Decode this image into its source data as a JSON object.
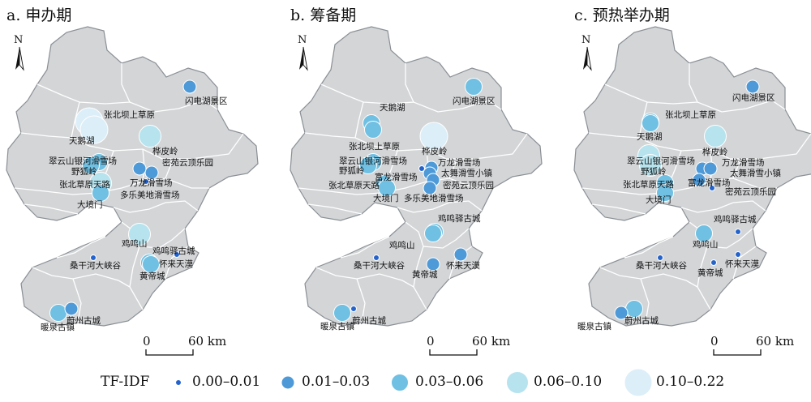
{
  "colors": {
    "land": "#d3d5d7",
    "border": "#ffffff",
    "outline": "#8a8f94",
    "c1": "#2463cc",
    "c2": "#4e9ad8",
    "c3": "#6fc0e3",
    "c4": "#b6e3ee",
    "c5": "#dceef8"
  },
  "legend": {
    "title": "TF-IDF",
    "items": [
      {
        "label": "0.00–0.01",
        "cls": 1
      },
      {
        "label": "0.01–0.03",
        "cls": 2
      },
      {
        "label": "0.03–0.06",
        "cls": 3
      },
      {
        "label": "0.06–0.10",
        "cls": 4
      },
      {
        "label": "0.10–0.22",
        "cls": 5
      }
    ]
  },
  "panels": [
    {
      "title": "a. 申办期",
      "scale": {
        "zero": "0",
        "dist": "60 km"
      },
      "north": "N",
      "sites": [
        {
          "name": "闪电湖景区",
          "cls": 2
        },
        {
          "name": "张北坝上草原",
          "cls": 5
        },
        {
          "name": "天鹅湖",
          "cls": 5
        },
        {
          "name": "桦皮岭",
          "cls": 4
        },
        {
          "name": "密苑云顶乐园",
          "cls": 2
        },
        {
          "name": "翠云山银河滑雪场",
          "cls": 3
        },
        {
          "name": "野狐岭",
          "cls": 3
        },
        {
          "name": "万龙滑雪场",
          "cls": 2
        },
        {
          "name": "张北草原天路",
          "cls": 4
        },
        {
          "name": "多乐美地滑雪场",
          "cls": 1
        },
        {
          "name": "大境门",
          "cls": 3
        },
        {
          "name": "鸡鸣山",
          "cls": 4
        },
        {
          "name": "鸡鸣驿古城",
          "cls": 1
        },
        {
          "name": "桑干河大峡谷",
          "cls": 1
        },
        {
          "name": "怀来天漠",
          "cls": 3
        },
        {
          "name": "黄帝城",
          "cls": 3
        },
        {
          "name": "蔚州古城",
          "cls": 2
        },
        {
          "name": "暖泉古镇",
          "cls": 3
        }
      ]
    },
    {
      "title": "b. 筹备期",
      "scale": {
        "zero": "0",
        "dist": "60 km"
      },
      "north": "N",
      "sites": [
        {
          "name": "闪电湖景区",
          "cls": 3
        },
        {
          "name": "天鹅湖",
          "cls": 3
        },
        {
          "name": "张北坝上草原",
          "cls": 3
        },
        {
          "name": "桦皮岭",
          "cls": 5
        },
        {
          "name": "翠云山银河滑雪场",
          "cls": 3
        },
        {
          "name": "野狐岭",
          "cls": 3
        },
        {
          "name": "富龙滑雪场",
          "cls": 1
        },
        {
          "name": "万龙滑雪场",
          "cls": 2
        },
        {
          "name": "太舞滑雪小镇",
          "cls": 2
        },
        {
          "name": "密苑云顶乐园",
          "cls": 2
        },
        {
          "name": "张北草原天路",
          "cls": 3
        },
        {
          "name": "大境门",
          "cls": 3
        },
        {
          "name": "多乐美地滑雪场",
          "cls": 2
        },
        {
          "name": "鸡鸣驿古城",
          "cls": 3
        },
        {
          "name": "鸡鸣山",
          "cls": 3
        },
        {
          "name": "桑干河大峡谷",
          "cls": 1
        },
        {
          "name": "怀来天漠",
          "cls": 2
        },
        {
          "name": "黄帝城",
          "cls": 2
        },
        {
          "name": "蔚州古城",
          "cls": 1
        },
        {
          "name": "暖泉古镇",
          "cls": 3
        }
      ]
    },
    {
      "title": "c. 预热举办期",
      "scale": {
        "zero": "0",
        "dist": "60 km"
      },
      "north": "N",
      "sites": [
        {
          "name": "闪电湖景区",
          "cls": 2
        },
        {
          "name": "张北坝上草原",
          "cls": 3
        },
        {
          "name": "天鹅湖",
          "cls": 3
        },
        {
          "name": "桦皮岭",
          "cls": 4
        },
        {
          "name": "翠云山银河滑雪场",
          "cls": 4
        },
        {
          "name": "野狐岭",
          "cls": 4
        },
        {
          "name": "万龙滑雪场",
          "cls": 2
        },
        {
          "name": "太舞滑雪小镇",
          "cls": 2
        },
        {
          "name": "富龙滑雪场",
          "cls": 2
        },
        {
          "name": "张北草原天路",
          "cls": 3
        },
        {
          "name": "密苑云顶乐园",
          "cls": 1
        },
        {
          "name": "大境门",
          "cls": 3
        },
        {
          "name": "鸡鸣驿古城",
          "cls": 1
        },
        {
          "name": "鸡鸣山",
          "cls": 3
        },
        {
          "name": "桑干河大峡谷",
          "cls": 1
        },
        {
          "name": "怀来天漠",
          "cls": 1
        },
        {
          "name": "黄帝城",
          "cls": 1
        },
        {
          "name": "蔚州古城",
          "cls": 3
        },
        {
          "name": "暖泉古镇",
          "cls": 2
        }
      ]
    }
  ]
}
